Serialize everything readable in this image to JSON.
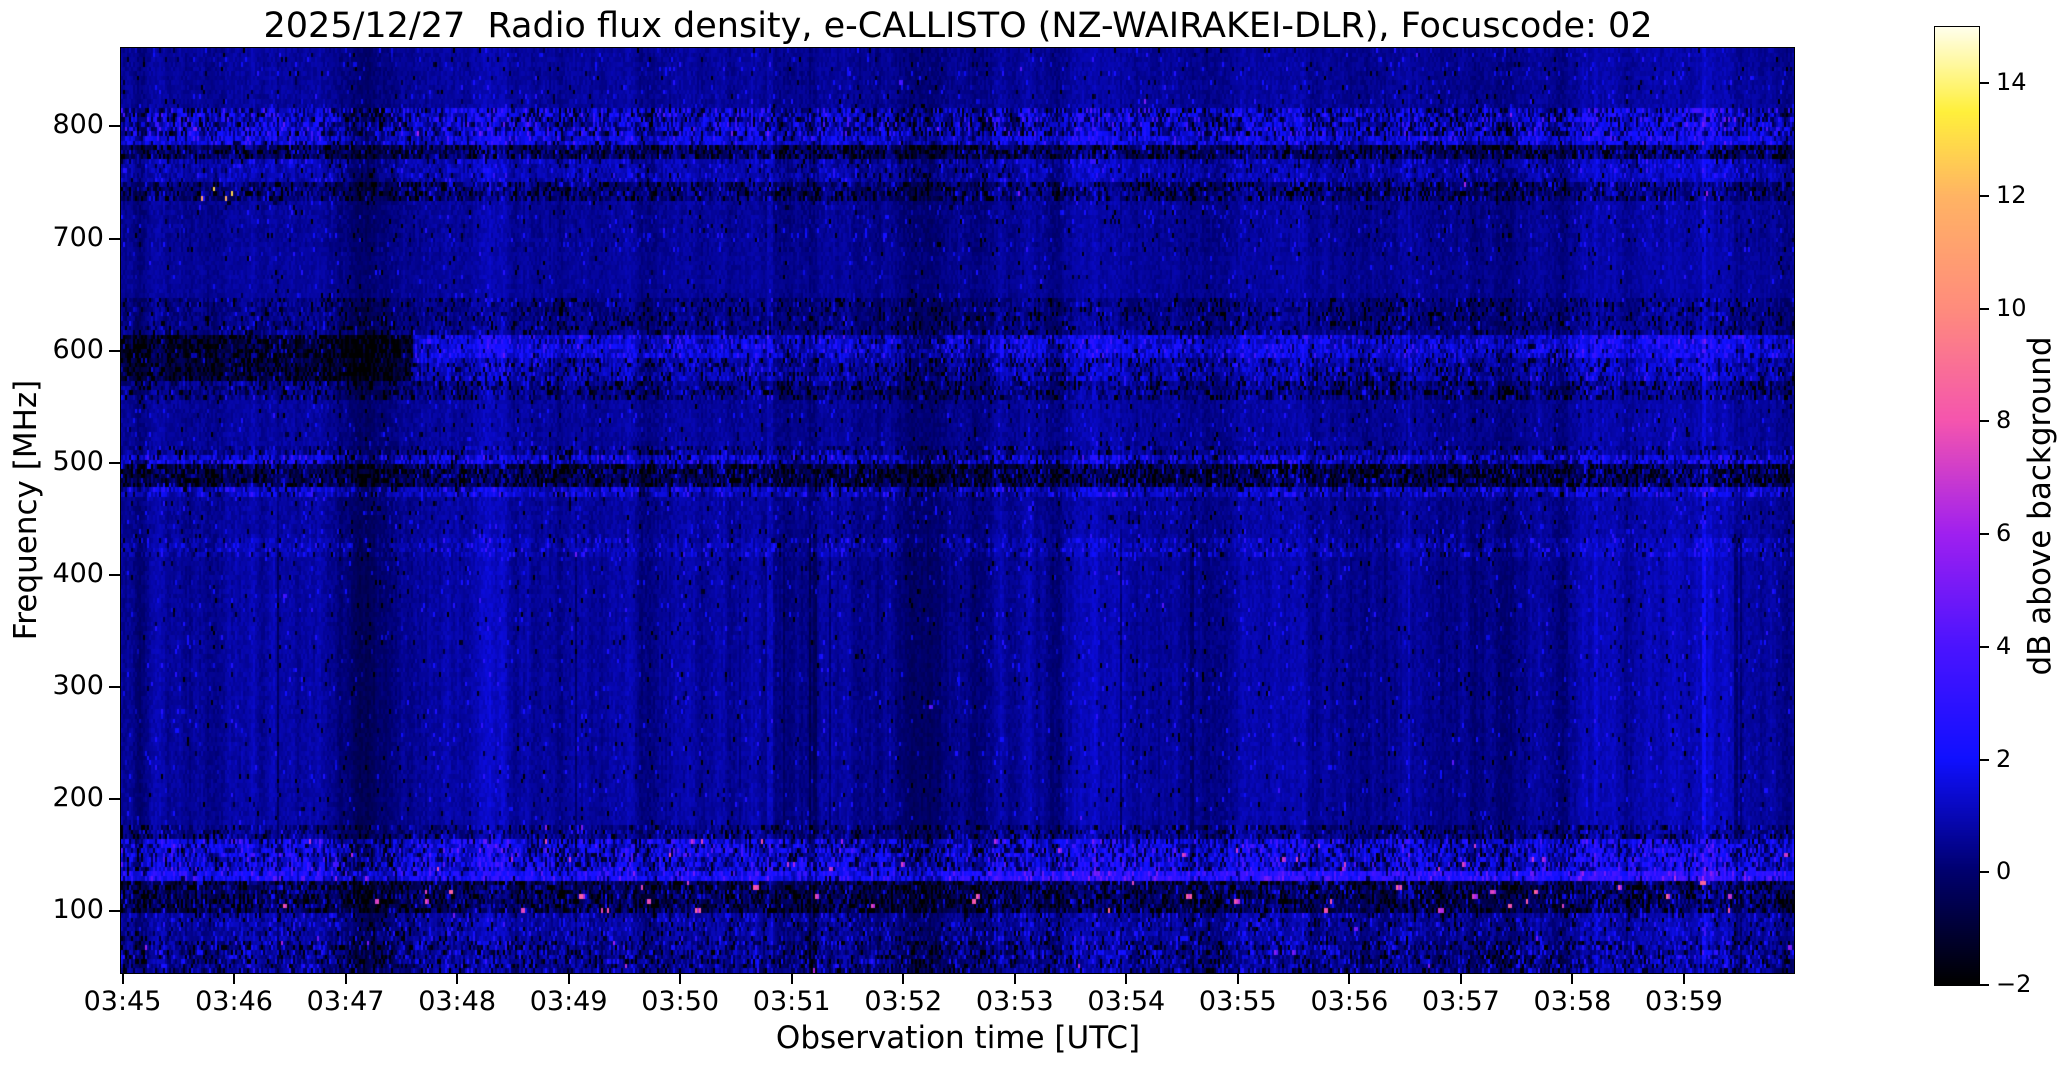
{
  "chart_data": {
    "type": "heatmap",
    "title": "2025/12/27  Radio flux density, e-CALLISTO (NZ-WAIRAKEI-DLR), Focuscode: 02",
    "xlabel": "Observation time [UTC]",
    "ylabel": "Frequency [MHz]",
    "colorbar_label": "dB above background",
    "date": "2025/12/27",
    "instrument": "e-CALLISTO (NZ-WAIRAKEI-DLR)",
    "focuscode": "02",
    "x_start": "03:45",
    "x_end": "04:00",
    "x_range_minutes": [
      0,
      15
    ],
    "x_ticklabels": [
      "03:45",
      "03:46",
      "03:47",
      "03:48",
      "03:49",
      "03:50",
      "03:51",
      "03:52",
      "03:53",
      "03:54",
      "03:55",
      "03:56",
      "03:57",
      "03:58",
      "03:59"
    ],
    "y_ticks": [
      800,
      700,
      600,
      500,
      400,
      300,
      200,
      100
    ],
    "freq_range_mhz": [
      45,
      870
    ],
    "value_range_db": [
      -2,
      15
    ],
    "colorbar_ticks": [
      {
        "v": 14,
        "label": "14"
      },
      {
        "v": 12,
        "label": "12"
      },
      {
        "v": 10,
        "label": "10"
      },
      {
        "v": 8,
        "label": "8"
      },
      {
        "v": 6,
        "label": "6"
      },
      {
        "v": 4,
        "label": "4"
      },
      {
        "v": 2,
        "label": "2"
      },
      {
        "v": 0,
        "label": "0"
      },
      {
        "v": -2,
        "label": "−2"
      }
    ],
    "colormap_stops": [
      [
        -2,
        0,
        0,
        0
      ],
      [
        0,
        0,
        0,
        110
      ],
      [
        2,
        16,
        16,
        255
      ],
      [
        4,
        75,
        20,
        255
      ],
      [
        6,
        160,
        32,
        240
      ],
      [
        8,
        245,
        85,
        175
      ],
      [
        10,
        255,
        140,
        125
      ],
      [
        12,
        255,
        180,
        100
      ],
      [
        13.5,
        255,
        240,
        60
      ],
      [
        15,
        255,
        255,
        235
      ]
    ],
    "noise_seed": 20251227,
    "background_level_db": 0.5,
    "bands": [
      {
        "f_hi": 870,
        "f_lo": 816,
        "base": 0.55,
        "amp": 0.3,
        "gs": 0.5,
        "dsp": 0.02,
        "bsp": 0.03,
        "dot_p": 0.0006,
        "dot_v": 3.5,
        "note": "quiet navy, faint streaks"
      },
      {
        "f_hi": 816,
        "f_lo": 793,
        "base": 1.2,
        "amp": 1.1,
        "gs": 1.1,
        "dsp": 0.32,
        "bsp": 0.22,
        "dot_p": 0.001,
        "dot_v": 4.5,
        "note": "800 MHz RFI band, blue/black speckle"
      },
      {
        "f_hi": 793,
        "f_lo": 783,
        "base": 1.4,
        "amp": 0.8,
        "gs": 1.0,
        "dsp": 0.1,
        "bsp": 0.12,
        "dot_p": 0,
        "dot_v": 0,
        "note": "bright blue streaks"
      },
      {
        "f_hi": 783,
        "f_lo": 769,
        "base": -0.1,
        "amp": 0.8,
        "gs": 0.8,
        "dsp": 0.3,
        "bsp": 0.12,
        "dot_p": 0.0008,
        "dot_v": 4.0,
        "note": "dark speckle"
      },
      {
        "f_hi": 769,
        "f_lo": 752,
        "base": 0.8,
        "amp": 0.55,
        "gs": 0.8,
        "dsp": 0.06,
        "bsp": 0.08,
        "dot_p": 0,
        "dot_v": 0,
        "note": "medium blue"
      },
      {
        "f_hi": 752,
        "f_lo": 734,
        "base": 0.1,
        "amp": 0.7,
        "gs": 0.8,
        "dsp": 0.24,
        "bsp": 0.12,
        "dot_p": 0.0012,
        "dot_v": 4.5,
        "warm_until": 1.4,
        "warm_p": 0.005,
        "warm_v": 10.5,
        "note": "740 MHz speckle, warm dots near 03:45"
      },
      {
        "f_hi": 734,
        "f_lo": 689,
        "base": 0.5,
        "amp": 0.32,
        "gs": 0.6,
        "dsp": 0.02,
        "bsp": 0.03,
        "dot_p": 0,
        "dot_v": 0,
        "note": "mottled navy"
      },
      {
        "f_hi": 689,
        "f_lo": 646,
        "base": 0.55,
        "amp": 0.25,
        "gs": 0.5,
        "dsp": 0.012,
        "bsp": 0.015,
        "dot_p": 0,
        "dot_v": 0,
        "note": "quiet navy"
      },
      {
        "f_hi": 646,
        "f_lo": 613,
        "base": 0.25,
        "amp": 0.5,
        "gs": 0.7,
        "dsp": 0.13,
        "bsp": 0.05,
        "dot_p": 0,
        "dot_v": 0,
        "note": "slightly dark mottle"
      },
      {
        "f_hi": 613,
        "f_lo": 592,
        "base": 1.25,
        "amp": 0.8,
        "gs": 1.2,
        "dsp": 0.09,
        "bsp": 0.16,
        "dot_p": 0,
        "dot_v": 0,
        "dark_until": 2.6,
        "dark_base": -1.0,
        "dark_amp": 0.8,
        "dark_dsp": 0.35,
        "note": "600 MHz band, black until ~03:47.6 then blue"
      },
      {
        "f_hi": 592,
        "f_lo": 574,
        "base": 0.8,
        "amp": 0.65,
        "gs": 1.0,
        "dsp": 0.18,
        "bsp": 0.09,
        "dot_p": 0,
        "dot_v": 0,
        "dark_until": 2.6,
        "dark_base": -0.8,
        "dark_amp": 0.7,
        "dark_dsp": 0.3,
        "note": "585 MHz band, dark start"
      },
      {
        "f_hi": 574,
        "f_lo": 556,
        "base": 0.3,
        "amp": 0.6,
        "gs": 0.8,
        "dsp": 0.2,
        "bsp": 0.06,
        "dot_p": 0,
        "dot_v": 0,
        "note": "560 MHz speckle"
      },
      {
        "f_hi": 556,
        "f_lo": 517,
        "base": 0.55,
        "amp": 0.3,
        "gs": 0.6,
        "dsp": 0.02,
        "bsp": 0.025,
        "dot_p": 0,
        "dot_v": 0,
        "note": "navy"
      },
      {
        "f_hi": 517,
        "f_lo": 507,
        "base": 0.45,
        "amp": 0.55,
        "gs": 0.7,
        "dsp": 0.15,
        "bsp": 0.07,
        "dot_p": 0.003,
        "dot_v": 6.2,
        "left_bias": 1,
        "note": "510 MHz, pink dots near start"
      },
      {
        "f_hi": 507,
        "f_lo": 497,
        "base": 1.1,
        "amp": 0.85,
        "gs": 1.0,
        "dsp": 0.16,
        "bsp": 0.2,
        "dot_p": 0,
        "dot_v": 0,
        "note": "500 MHz bright speckle"
      },
      {
        "f_hi": 497,
        "f_lo": 477,
        "base": -0.4,
        "amp": 0.8,
        "gs": 0.8,
        "dsp": 0.34,
        "bsp": 0.16,
        "dot_p": 0,
        "dot_v": 0,
        "note": "485 MHz dark speckle band"
      },
      {
        "f_hi": 477,
        "f_lo": 469,
        "base": 1.0,
        "amp": 0.7,
        "gs": 0.9,
        "dsp": 0.1,
        "bsp": 0.16,
        "dot_p": 0,
        "dot_v": 0,
        "note": "473 MHz blue speckle line"
      },
      {
        "f_hi": 469,
        "f_lo": 431,
        "base": 0.55,
        "amp": 0.32,
        "gs": 0.7,
        "dsp": 0.025,
        "bsp": 0.03,
        "dot_p": 0,
        "dot_v": 0,
        "note": "navy"
      },
      {
        "f_hi": 431,
        "f_lo": 417,
        "base": 0.75,
        "amp": 0.5,
        "gs": 0.9,
        "dsp": 0.05,
        "bsp": 0.1,
        "dot_p": 0.0006,
        "dot_v": 3.5,
        "note": "422 MHz thin blue line"
      },
      {
        "f_hi": 417,
        "f_lo": 176,
        "base": 0.55,
        "amp": 0.27,
        "gs": 0.85,
        "dsp": 0.015,
        "bsp": 0.02,
        "dot_p": 0.00015,
        "dot_v": 3.2,
        "note": "broad navy region, vertical striping"
      },
      {
        "f_hi": 176,
        "f_lo": 163,
        "base": 0.3,
        "amp": 0.6,
        "gs": 0.8,
        "dsp": 0.18,
        "bsp": 0.1,
        "dot_p": 0.0005,
        "dot_v": 4.0,
        "note": "170 MHz transition speckle"
      },
      {
        "f_hi": 163,
        "f_lo": 136,
        "base": 1.5,
        "amp": 1.0,
        "gs": 1.2,
        "dsp": 0.3,
        "bsp": 0.2,
        "dot_p": 0.004,
        "dot_v": 6.0,
        "note": "150 MHz RFI band, magenta dots"
      },
      {
        "f_hi": 136,
        "f_lo": 128,
        "base": 1.9,
        "amp": 0.8,
        "gs": 1.0,
        "dsp": 0.12,
        "bsp": 0.25,
        "dot_p": 0.002,
        "dot_v": 5.0,
        "right_from": 7.4,
        "right_boost": 0.8,
        "note": "132 MHz bright line, pale right half"
      },
      {
        "f_hi": 128,
        "f_lo": 97,
        "base": -0.3,
        "amp": 0.8,
        "gs": 0.8,
        "dsp": 0.3,
        "bsp": 0.16,
        "dot_p": 0.005,
        "dot_v": 7.0,
        "note": "110 MHz dark band with magenta blobs"
      },
      {
        "f_hi": 97,
        "f_lo": 73,
        "base": 0.55,
        "amp": 0.5,
        "gs": 0.8,
        "dsp": 0.1,
        "bsp": 0.13,
        "dot_p": 0.0008,
        "dot_v": 4.0,
        "note": "85 MHz blue speckle"
      },
      {
        "f_hi": 73,
        "f_lo": 45,
        "base": 0.35,
        "amp": 0.65,
        "gs": 0.9,
        "dsp": 0.2,
        "bsp": 0.18,
        "dot_p": 0.0015,
        "dot_v": 5.0,
        "note": "bottom band, contrast speckle"
      }
    ]
  }
}
